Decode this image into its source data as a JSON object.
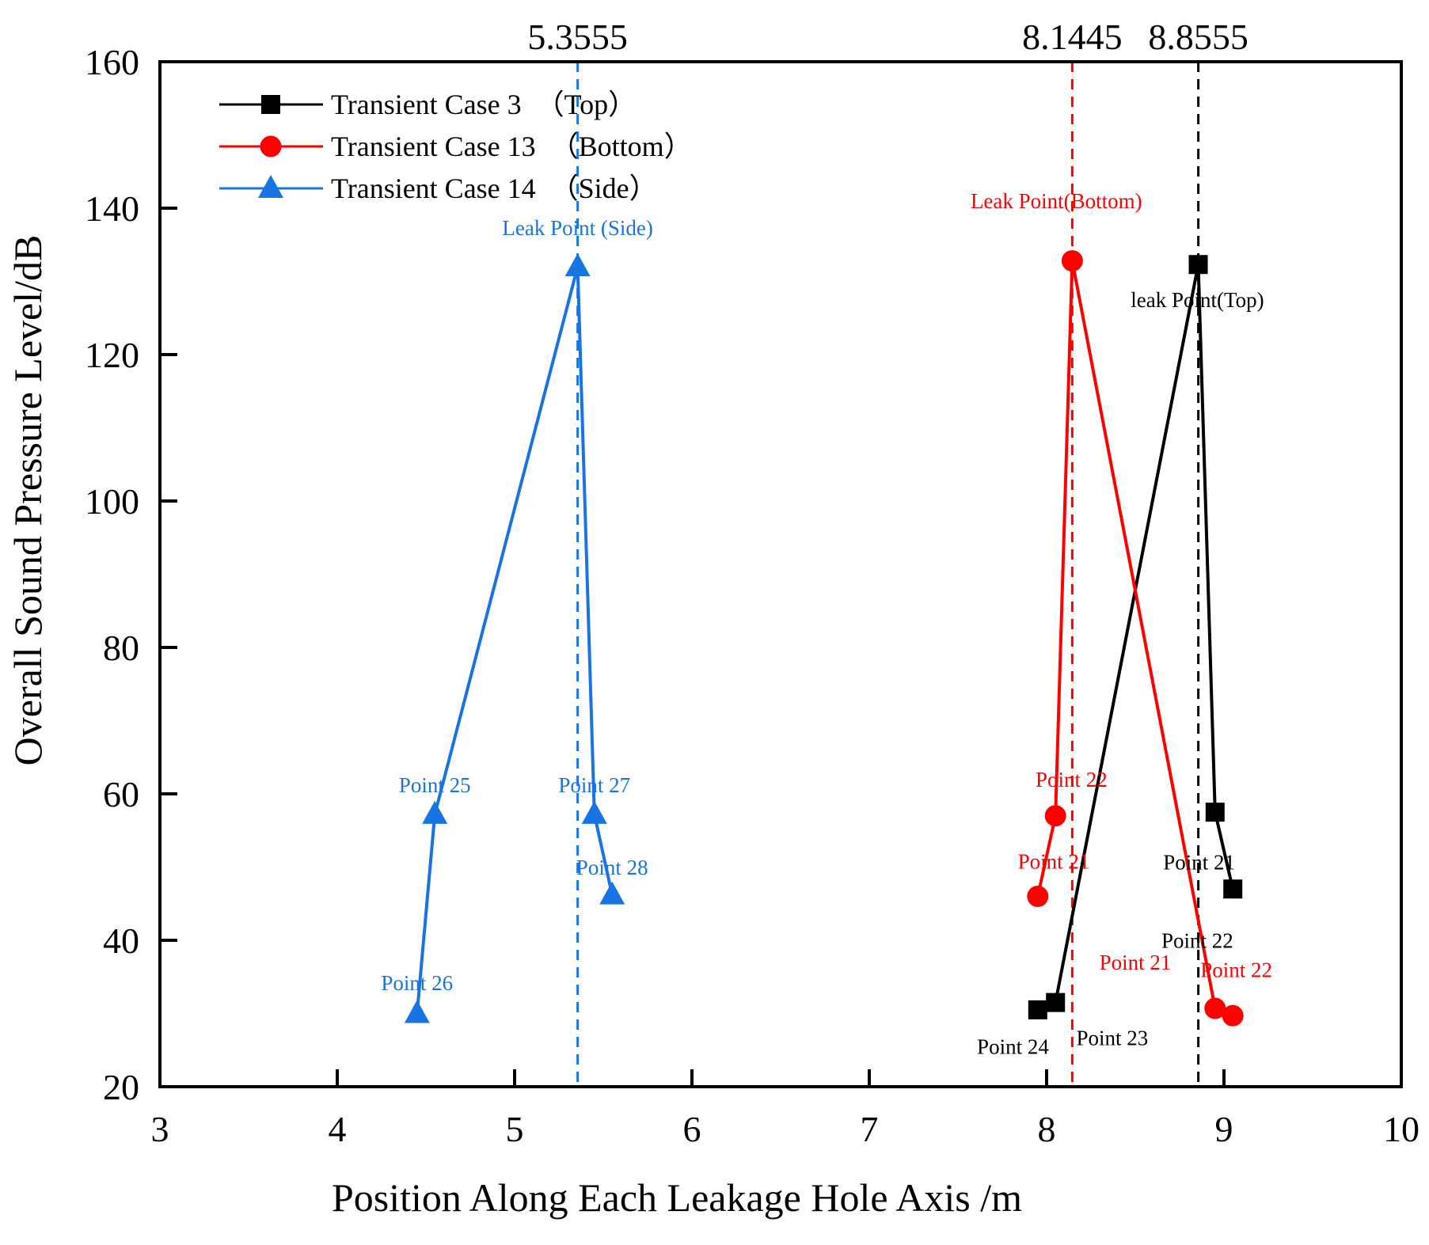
{
  "chart_data": {
    "type": "line",
    "title": "",
    "xlabel": "Position Along Each Leakage Hole Axis /m",
    "ylabel": "Overall Sound Pressure Level/dB",
    "xlim": [
      3,
      10
    ],
    "ylim": [
      20,
      160
    ],
    "xticks": [
      3,
      4,
      5,
      6,
      7,
      8,
      9,
      10
    ],
    "yticks": [
      20,
      40,
      60,
      80,
      100,
      120,
      140,
      160
    ],
    "xtick_labels": [
      "3",
      "4",
      "5",
      "6",
      "7",
      "8",
      "9",
      "10"
    ],
    "ytick_labels": [
      "20",
      "40",
      "60",
      "80",
      "100",
      "120",
      "140",
      "160"
    ],
    "legend_position": "top-left",
    "series": [
      {
        "name": "Transient Case 3　（Top）",
        "color": "#000000",
        "marker": "square",
        "points": [
          {
            "x": 7.95,
            "y": 30.5
          },
          {
            "x": 8.05,
            "y": 31.5
          },
          {
            "x": 8.855,
            "y": 132.3
          },
          {
            "x": 8.95,
            "y": 57.5
          },
          {
            "x": 9.05,
            "y": 47.0
          }
        ]
      },
      {
        "name": "Transient Case 13　（Bottom）",
        "color": "#ff0000",
        "marker": "circle",
        "points": [
          {
            "x": 7.95,
            "y": 46.0
          },
          {
            "x": 8.05,
            "y": 57.0
          },
          {
            "x": 8.1445,
            "y": 132.8
          },
          {
            "x": 8.95,
            "y": 30.7
          },
          {
            "x": 9.05,
            "y": 29.7
          }
        ]
      },
      {
        "name": "Transient Case 14　（Side）",
        "color": "#1874e3",
        "marker": "triangle",
        "points": [
          {
            "x": 4.45,
            "y": 30.0
          },
          {
            "x": 4.55,
            "y": 57.2
          },
          {
            "x": 5.3555,
            "y": 132.0
          },
          {
            "x": 5.45,
            "y": 57.2
          },
          {
            "x": 5.55,
            "y": 46.2
          }
        ]
      }
    ],
    "reference_lines": [
      {
        "x": 5.3555,
        "label": "5.3555",
        "color": "#1874e3"
      },
      {
        "x": 8.1445,
        "label": "8.1445",
        "color": "#ff0000"
      },
      {
        "x": 8.8555,
        "label": "8.8555",
        "color": "#000000"
      }
    ],
    "annotations": [
      {
        "text": "Leak Point (Side)",
        "x": 5.3555,
        "y": 136.3,
        "color": "#1874e3"
      },
      {
        "text": "Point 25",
        "x": 4.55,
        "y": 60.2,
        "color": "#1874e3"
      },
      {
        "text": "Point 26",
        "x": 4.45,
        "y": 33.2,
        "color": "#1874e3"
      },
      {
        "text": "Point 27",
        "x": 5.45,
        "y": 60.2,
        "color": "#1874e3"
      },
      {
        "text": "Point 28",
        "x": 5.55,
        "y": 49.0,
        "color": "#1874e3"
      },
      {
        "text": "Leak Point(Bottom)",
        "x": 8.055,
        "y": 140.0,
        "color": "#ff0000"
      },
      {
        "text": "Point 22",
        "x": 8.14,
        "y": 61.0,
        "color": "#ff0000"
      },
      {
        "text": "Point 21",
        "x": 8.04,
        "y": 49.8,
        "color": "#ff0000"
      },
      {
        "text": "Point 21",
        "x": 8.5,
        "y": 36.0,
        "color": "#ff0000"
      },
      {
        "text": "Point 22",
        "x": 9.07,
        "y": 35.0,
        "color": "#ff0000"
      },
      {
        "text": "leak Point(Top)",
        "x": 8.85,
        "y": 126.5,
        "color": "#000000"
      },
      {
        "text": "Point 21",
        "x": 8.86,
        "y": 49.7,
        "color": "#000000"
      },
      {
        "text": "Point 22",
        "x": 8.85,
        "y": 39.0,
        "color": "#000000"
      },
      {
        "text": "Point 24",
        "x": 7.81,
        "y": 24.5,
        "color": "#000000"
      },
      {
        "text": "Point 23",
        "x": 8.37,
        "y": 25.7,
        "color": "#000000"
      }
    ]
  }
}
